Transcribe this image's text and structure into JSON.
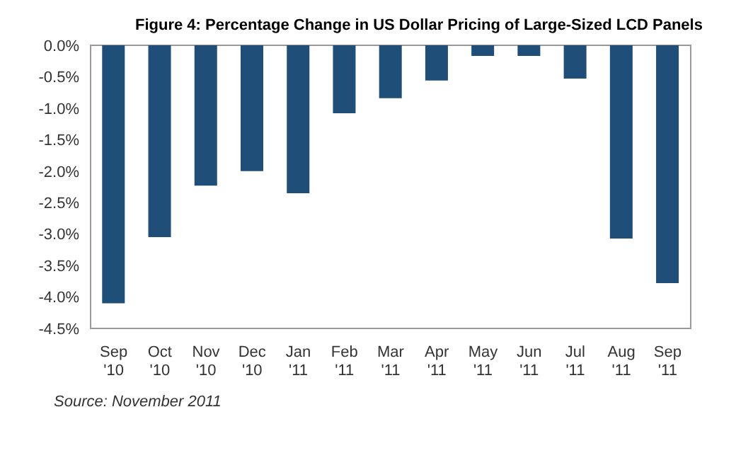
{
  "chart_data": {
    "type": "bar",
    "title": "Figure 4: Percentage Change in US Dollar Pricing of Large-Sized LCD Panels",
    "categories": [
      "Sep '10",
      "Oct '10",
      "Nov '10",
      "Dec '10",
      "Jan '11",
      "Feb '11",
      "Mar '11",
      "Apr '11",
      "May '11",
      "Jun '11",
      "Jul '11",
      "Aug '11",
      "Sep '11"
    ],
    "values": [
      -4.1,
      -3.05,
      -2.23,
      -2.0,
      -2.35,
      -1.08,
      -0.84,
      -0.56,
      -0.17,
      -0.17,
      -0.53,
      -3.07,
      -3.78
    ],
    "color": "#1f4e78",
    "ylim": [
      -4.5,
      0
    ],
    "yticks": [
      {
        "value": 0,
        "label": "0.0%"
      },
      {
        "value": -0.5,
        "label": "-0.5%"
      },
      {
        "value": -1,
        "label": "-1.0%"
      },
      {
        "value": -1.5,
        "label": "-1.5%"
      },
      {
        "value": -2,
        "label": "-2.0%"
      },
      {
        "value": -2.5,
        "label": "-2.5%"
      },
      {
        "value": -3,
        "label": "-3.0%"
      },
      {
        "value": -3.5,
        "label": "-3.5%"
      },
      {
        "value": -4,
        "label": "-4.0%"
      },
      {
        "value": -4.5,
        "label": "-4.5%"
      }
    ],
    "grid": false,
    "annotations": [
      "Source: November 2011"
    ]
  }
}
